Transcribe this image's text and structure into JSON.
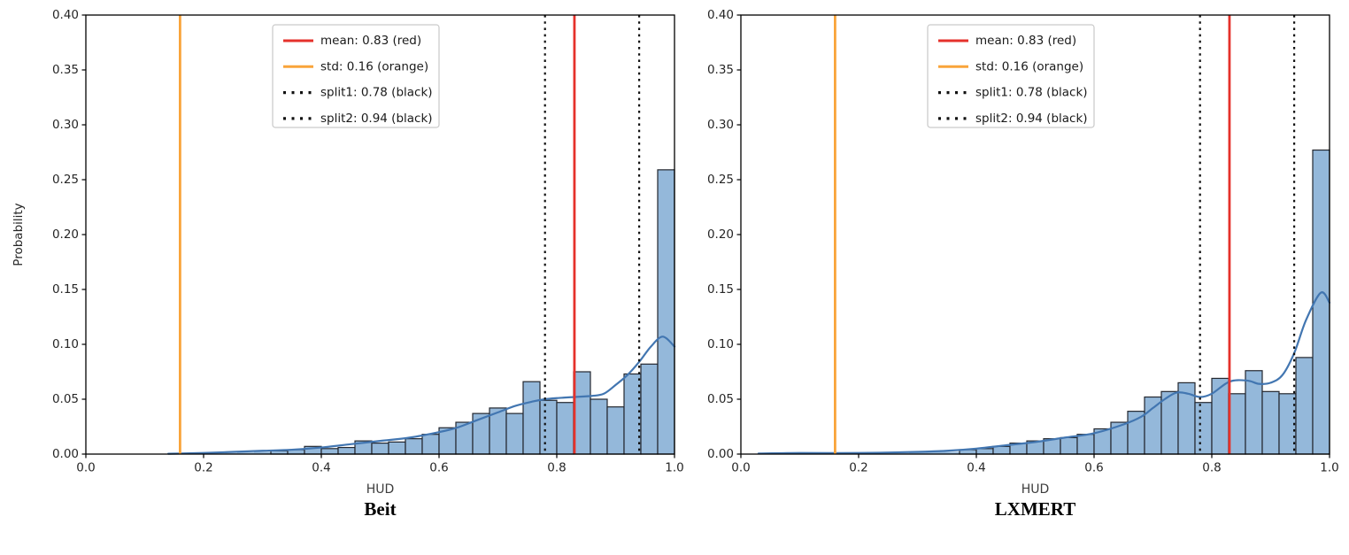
{
  "colors": {
    "bar_fill": "#94b8da",
    "bar_edge": "#23272f",
    "kde_line": "#4276b1",
    "mean_line": "#e5312b",
    "std_line": "#f9a43a",
    "split_line": "#111111",
    "axis": "#000000",
    "tick_label": "#262626",
    "legend_border": "#c9c9c9",
    "legend_bg": "#ffffff"
  },
  "chart_data": [
    {
      "type": "bar",
      "variant": "histogram_with_kde",
      "caption": "Beit",
      "xlabel": "HUD",
      "ylabel": "Probability",
      "xlim": [
        0.0,
        1.0
      ],
      "ylim": [
        0.0,
        0.4
      ],
      "x_ticks": [
        "0.0",
        "0.2",
        "0.4",
        "0.6",
        "0.8",
        "1.0"
      ],
      "y_ticks": [
        "0.00",
        "0.05",
        "0.10",
        "0.15",
        "0.20",
        "0.25",
        "0.30",
        "0.35",
        "0.40"
      ],
      "grid": false,
      "n_bins": 35,
      "bin_range": [
        0.0,
        1.0
      ],
      "values": [
        0,
        0,
        0,
        0,
        0,
        0,
        0.0005,
        0.001,
        0.001,
        0.0015,
        0.002,
        0.003,
        0.004,
        0.007,
        0.005,
        0.006,
        0.012,
        0.01,
        0.011,
        0.014,
        0.018,
        0.024,
        0.029,
        0.037,
        0.042,
        0.037,
        0.066,
        0.049,
        0.047,
        0.075,
        0.05,
        0.043,
        0.073,
        0.082,
        0.259
      ],
      "kde": {
        "x": [
          0.14,
          0.16,
          0.2,
          0.25,
          0.3,
          0.35,
          0.4,
          0.45,
          0.5,
          0.55,
          0.6,
          0.63,
          0.66,
          0.7,
          0.73,
          0.76,
          0.78,
          0.8,
          0.83,
          0.86,
          0.88,
          0.9,
          0.92,
          0.94,
          0.96,
          0.98,
          1.0
        ],
        "y": [
          0.0003,
          0.0005,
          0.001,
          0.002,
          0.003,
          0.004,
          0.006,
          0.009,
          0.012,
          0.015,
          0.02,
          0.024,
          0.03,
          0.038,
          0.044,
          0.048,
          0.05,
          0.051,
          0.052,
          0.053,
          0.055,
          0.063,
          0.072,
          0.084,
          0.098,
          0.107,
          0.098
        ]
      },
      "vlines": [
        {
          "name": "mean",
          "x": 0.83,
          "style": "solid",
          "color_key": "mean_line",
          "legend_label": "mean: 0.83 (red)"
        },
        {
          "name": "std",
          "x": 0.16,
          "style": "solid",
          "color_key": "std_line",
          "legend_label": "std: 0.16 (orange)"
        },
        {
          "name": "split1",
          "x": 0.78,
          "style": "dotted",
          "color_key": "split_line",
          "legend_label": "split1: 0.78 (black)"
        },
        {
          "name": "split2",
          "x": 0.94,
          "style": "dotted",
          "color_key": "split_line",
          "legend_label": "split2: 0.94 (black)"
        }
      ],
      "legend_position": "upper center-left"
    },
    {
      "type": "bar",
      "variant": "histogram_with_kde",
      "caption": "LXMERT",
      "xlabel": "HUD",
      "ylabel": "",
      "xlim": [
        0.0,
        1.0
      ],
      "ylim": [
        0.0,
        0.4
      ],
      "x_ticks": [
        "0.0",
        "0.2",
        "0.4",
        "0.6",
        "0.8",
        "1.0"
      ],
      "y_ticks": [
        "0.00",
        "0.05",
        "0.10",
        "0.15",
        "0.20",
        "0.25",
        "0.30",
        "0.35",
        "0.40"
      ],
      "grid": false,
      "n_bins": 35,
      "bin_range": [
        0.0,
        1.0
      ],
      "values": [
        0,
        0.0005,
        0.001,
        0.001,
        0.001,
        0.001,
        0.001,
        0.001,
        0.001,
        0.001,
        0.0015,
        0.002,
        0.002,
        0.004,
        0.005,
        0.007,
        0.01,
        0.012,
        0.014,
        0.015,
        0.018,
        0.023,
        0.029,
        0.039,
        0.052,
        0.057,
        0.065,
        0.047,
        0.069,
        0.055,
        0.076,
        0.057,
        0.055,
        0.088,
        0.277
      ],
      "kde": {
        "x": [
          0.03,
          0.1,
          0.2,
          0.3,
          0.35,
          0.4,
          0.45,
          0.5,
          0.55,
          0.6,
          0.65,
          0.68,
          0.7,
          0.72,
          0.74,
          0.76,
          0.78,
          0.8,
          0.83,
          0.86,
          0.88,
          0.9,
          0.92,
          0.94,
          0.96,
          0.985,
          1.0
        ],
        "y": [
          0.0005,
          0.001,
          0.001,
          0.002,
          0.003,
          0.005,
          0.008,
          0.011,
          0.015,
          0.019,
          0.027,
          0.034,
          0.042,
          0.05,
          0.056,
          0.055,
          0.052,
          0.055,
          0.066,
          0.067,
          0.064,
          0.065,
          0.072,
          0.092,
          0.122,
          0.147,
          0.138
        ]
      },
      "vlines": [
        {
          "name": "mean",
          "x": 0.83,
          "style": "solid",
          "color_key": "mean_line",
          "legend_label": "mean: 0.83 (red)"
        },
        {
          "name": "std",
          "x": 0.16,
          "style": "solid",
          "color_key": "std_line",
          "legend_label": "std: 0.16 (orange)"
        },
        {
          "name": "split1",
          "x": 0.78,
          "style": "dotted",
          "color_key": "split_line",
          "legend_label": "split1: 0.78 (black)"
        },
        {
          "name": "split2",
          "x": 0.94,
          "style": "dotted",
          "color_key": "split_line",
          "legend_label": "split2: 0.94 (black)"
        }
      ],
      "legend_position": "upper center-left"
    }
  ]
}
